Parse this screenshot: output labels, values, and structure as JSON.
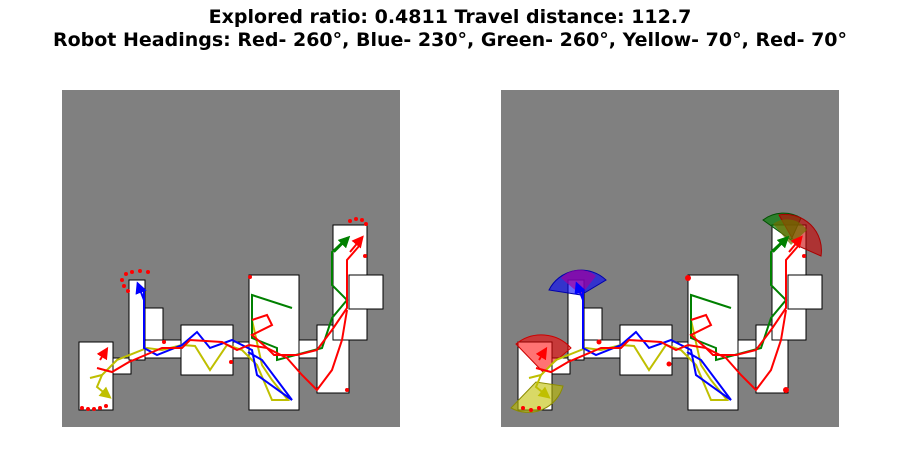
{
  "figure": {
    "title_line1": "Explored ratio: 0.4811  Travel distance: 112.7",
    "title_line2": "Robot Headings: Red- 260°, Blue- 230°, Green- 260°, Yellow- 70°, Red- 70°"
  },
  "metrics": {
    "explored_ratio": 0.4811,
    "travel_distance": 112.7
  },
  "robots": [
    {
      "color_name": "Red",
      "heading_deg": 260,
      "color": "#ff0000"
    },
    {
      "color_name": "Blue",
      "heading_deg": 230,
      "color": "#0000ff"
    },
    {
      "color_name": "Green",
      "heading_deg": 260,
      "color": "#008000"
    },
    {
      "color_name": "Yellow",
      "heading_deg": 70,
      "color": "#bfbf00"
    },
    {
      "color_name": "Red",
      "heading_deg": 70,
      "color": "#ff0000"
    }
  ],
  "colors": {
    "unknown": "#808080",
    "free": "#ffffff",
    "wall": "#000000",
    "frontier": "#ff0000"
  },
  "panels": [
    "explored-map-with-trajectories",
    "explored-map-with-sensor-fov"
  ]
}
